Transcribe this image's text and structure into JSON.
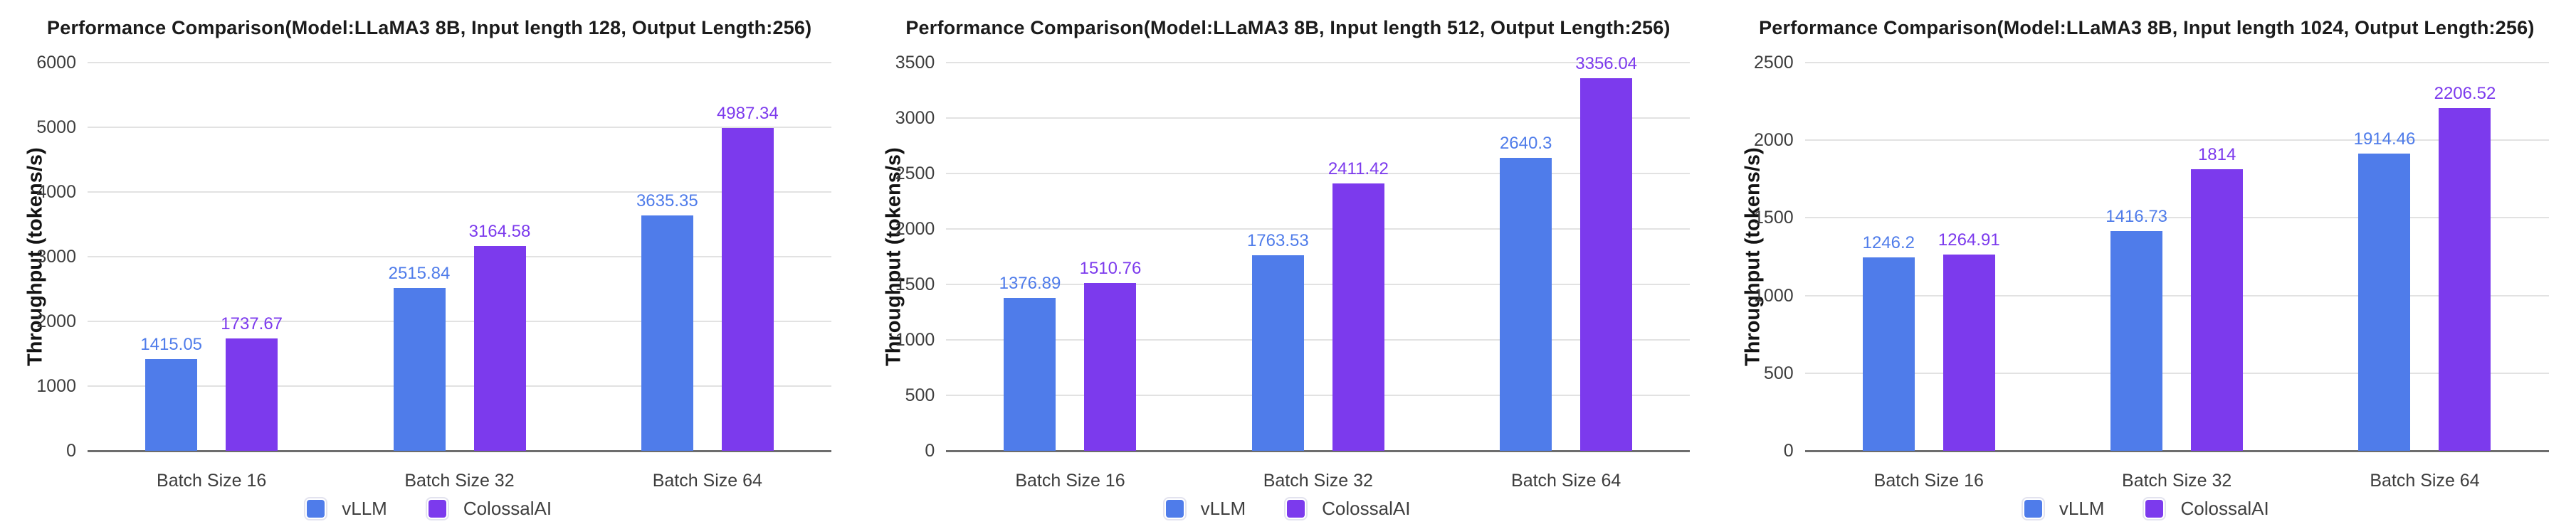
{
  "colors": {
    "vllm": "#4F7CEA",
    "colossalai": "#7C3AED",
    "grid": "#e2e2e2",
    "axis_line": "#6d6d6d",
    "title_text": "#1b1b1b",
    "tick_text": "#3d3d3d",
    "background": "#ffffff"
  },
  "legend": {
    "position": "bottom",
    "items": [
      {
        "label": "vLLM",
        "color": "#4F7CEA"
      },
      {
        "label": "ColossalAI",
        "color": "#7C3AED"
      }
    ]
  },
  "chart_data": [
    {
      "type": "bar",
      "title": "Performance Comparison(Model:LLaMA3 8B, Input length 128, Output Length:256)",
      "xlabel": "",
      "ylabel": "Throughput (tokens/s)",
      "categories": [
        "Batch Size 16",
        "Batch Size 32",
        "Batch Size 64"
      ],
      "series": [
        {
          "name": "vLLM",
          "color": "#4F7CEA",
          "values": [
            1415.05,
            2515.84,
            3635.35
          ]
        },
        {
          "name": "ColossalAI",
          "color": "#7C3AED",
          "values": [
            1737.67,
            3164.58,
            4987.34
          ]
        }
      ],
      "value_labels": [
        "1415.05",
        "1737.67",
        "2515.84",
        "3164.58",
        "3635.35",
        "4987.34"
      ],
      "ylim": [
        0,
        6000
      ],
      "yticks": [
        0,
        1000,
        2000,
        3000,
        4000,
        5000,
        6000
      ],
      "grid": true,
      "legend_position": "bottom"
    },
    {
      "type": "bar",
      "title": "Performance Comparison(Model:LLaMA3 8B, Input length 512, Output Length:256)",
      "xlabel": "",
      "ylabel": "Throughput (tokens/s)",
      "categories": [
        "Batch Size 16",
        "Batch Size 32",
        "Batch Size 64"
      ],
      "series": [
        {
          "name": "vLLM",
          "color": "#4F7CEA",
          "values": [
            1376.89,
            1763.53,
            2640.3
          ]
        },
        {
          "name": "ColossalAI",
          "color": "#7C3AED",
          "values": [
            1510.76,
            2411.42,
            3356.04
          ]
        }
      ],
      "value_labels": [
        "1376.89",
        "1510.76",
        "1763.53",
        "2411.42",
        "2640.3",
        "3356.04"
      ],
      "ylim": [
        0,
        3500
      ],
      "yticks": [
        0,
        500,
        1000,
        1500,
        2000,
        2500,
        3000,
        3500
      ],
      "grid": true,
      "legend_position": "bottom"
    },
    {
      "type": "bar",
      "title": "Performance Comparison(Model:LLaMA3 8B, Input length 1024, Output Length:256)",
      "xlabel": "",
      "ylabel": "Throughput (tokens/s)",
      "categories": [
        "Batch Size 16",
        "Batch Size 32",
        "Batch Size 64"
      ],
      "series": [
        {
          "name": "vLLM",
          "color": "#4F7CEA",
          "values": [
            1246.2,
            1416.73,
            1914.46
          ]
        },
        {
          "name": "ColossalAI",
          "color": "#7C3AED",
          "values": [
            1264.91,
            1814,
            2206.52
          ]
        }
      ],
      "value_labels": [
        "1246.2",
        "1264.91",
        "1416.73",
        "1814",
        "1914.46",
        "2206.52"
      ],
      "ylim": [
        0,
        2500
      ],
      "yticks": [
        0,
        500,
        1000,
        1500,
        2000,
        2500
      ],
      "grid": true,
      "legend_position": "bottom"
    }
  ]
}
